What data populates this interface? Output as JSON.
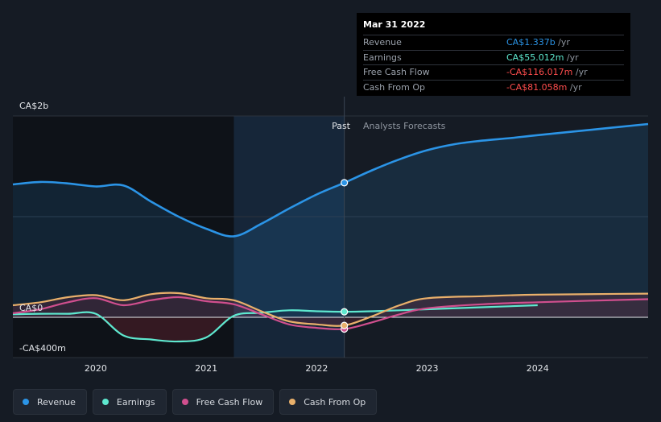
{
  "chart_data": {
    "type": "line",
    "y_axis": {
      "top_label": "CA$2b",
      "zero_label": "CA$0",
      "bottom_label": "-CA$400m",
      "ylim": [
        -400,
        2000
      ]
    },
    "x_axis": {
      "ticks": [
        "2020",
        "2021",
        "2022",
        "2023",
        "2024"
      ],
      "xlim": [
        2019.25,
        2025.0
      ]
    },
    "sections": {
      "past_label": "Past",
      "forecast_label": "Analysts Forecasts",
      "divider_x": 2022.25,
      "dark_band_until": 2021.25
    },
    "series": [
      {
        "name": "Revenue",
        "color": "#2b94e6",
        "points": [
          [
            2019.25,
            1320
          ],
          [
            2019.5,
            1345
          ],
          [
            2019.75,
            1330
          ],
          [
            2020.0,
            1300
          ],
          [
            2020.25,
            1310
          ],
          [
            2020.5,
            1150
          ],
          [
            2020.75,
            1000
          ],
          [
            2021.0,
            880
          ],
          [
            2021.25,
            805
          ],
          [
            2021.5,
            930
          ],
          [
            2021.75,
            1080
          ],
          [
            2022.0,
            1220
          ],
          [
            2022.25,
            1337
          ],
          [
            2022.5,
            1460
          ],
          [
            2022.75,
            1570
          ],
          [
            2023.0,
            1660
          ],
          [
            2023.25,
            1720
          ],
          [
            2023.5,
            1755
          ],
          [
            2023.75,
            1780
          ],
          [
            2024.0,
            1810
          ],
          [
            2024.5,
            1865
          ],
          [
            2025.0,
            1920
          ]
        ]
      },
      {
        "name": "Earnings",
        "color": "#5ee8cf",
        "points": [
          [
            2019.25,
            30
          ],
          [
            2019.5,
            35
          ],
          [
            2019.75,
            35
          ],
          [
            2020.0,
            35
          ],
          [
            2020.25,
            -180
          ],
          [
            2020.5,
            -220
          ],
          [
            2020.75,
            -240
          ],
          [
            2021.0,
            -200
          ],
          [
            2021.25,
            15
          ],
          [
            2021.5,
            45
          ],
          [
            2021.75,
            70
          ],
          [
            2022.0,
            60
          ],
          [
            2022.25,
            55
          ],
          [
            2022.5,
            60
          ],
          [
            2022.75,
            70
          ],
          [
            2023.0,
            80
          ],
          [
            2023.5,
            100
          ],
          [
            2024.0,
            120
          ]
        ]
      },
      {
        "name": "Free Cash Flow",
        "color": "#d04f8e",
        "points": [
          [
            2019.25,
            40
          ],
          [
            2019.5,
            80
          ],
          [
            2019.75,
            150
          ],
          [
            2020.0,
            190
          ],
          [
            2020.25,
            120
          ],
          [
            2020.5,
            170
          ],
          [
            2020.75,
            200
          ],
          [
            2021.0,
            160
          ],
          [
            2021.25,
            130
          ],
          [
            2021.5,
            30
          ],
          [
            2021.75,
            -70
          ],
          [
            2022.0,
            -105
          ],
          [
            2022.25,
            -116
          ],
          [
            2022.5,
            -50
          ],
          [
            2022.75,
            30
          ],
          [
            2023.0,
            90
          ],
          [
            2023.5,
            130
          ],
          [
            2024.0,
            150
          ],
          [
            2025.0,
            180
          ]
        ]
      },
      {
        "name": "Cash From Op",
        "color": "#e9b06b",
        "points": [
          [
            2019.25,
            120
          ],
          [
            2019.5,
            150
          ],
          [
            2019.75,
            200
          ],
          [
            2020.0,
            220
          ],
          [
            2020.25,
            170
          ],
          [
            2020.5,
            230
          ],
          [
            2020.75,
            240
          ],
          [
            2021.0,
            190
          ],
          [
            2021.25,
            170
          ],
          [
            2021.5,
            60
          ],
          [
            2021.75,
            -40
          ],
          [
            2022.0,
            -70
          ],
          [
            2022.25,
            -81
          ],
          [
            2022.5,
            10
          ],
          [
            2022.75,
            120
          ],
          [
            2023.0,
            190
          ],
          [
            2023.5,
            210
          ],
          [
            2024.0,
            225
          ],
          [
            2025.0,
            235
          ]
        ]
      }
    ],
    "highlight": {
      "x": 2022.25,
      "series_values": {
        "Revenue": 1337,
        "Earnings": 55.012,
        "Free Cash Flow": -116.017,
        "Cash From Op": -81.058
      }
    }
  },
  "tooltip": {
    "date": "Mar 31 2022",
    "rows": [
      {
        "label": "Revenue",
        "value": "CA$1.337b",
        "unit": " /yr",
        "color": "#2b94e6"
      },
      {
        "label": "Earnings",
        "value": "CA$55.012m",
        "unit": " /yr",
        "color": "#5ee8cf"
      },
      {
        "label": "Free Cash Flow",
        "value": "-CA$116.017m",
        "unit": " /yr",
        "color": "#ff4d4d"
      },
      {
        "label": "Cash From Op",
        "value": "-CA$81.058m",
        "unit": " /yr",
        "color": "#ff4d4d"
      }
    ]
  },
  "legend": [
    {
      "label": "Revenue",
      "color": "#2b94e6"
    },
    {
      "label": "Earnings",
      "color": "#5ee8cf"
    },
    {
      "label": "Free Cash Flow",
      "color": "#d04f8e"
    },
    {
      "label": "Cash From Op",
      "color": "#e9b06b"
    }
  ]
}
